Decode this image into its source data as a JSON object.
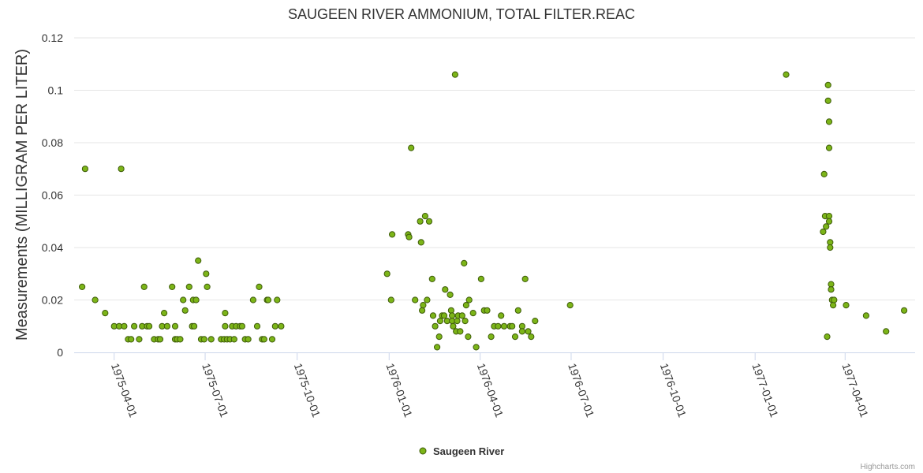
{
  "chart_data": {
    "type": "scatter",
    "title": "SAUGEEN RIVER AMMONIUM, TOTAL FILTER.REAC",
    "ylabel": "Measurements (MILLIGRAM PER LITER)",
    "xlabel": "",
    "xlim": [
      "1975-02-20",
      "1977-06-10"
    ],
    "ylim": [
      0,
      0.12
    ],
    "y_ticks": [
      0,
      0.02,
      0.04,
      0.06,
      0.08,
      0.1,
      0.12
    ],
    "y_tick_labels": [
      "0",
      "0.02",
      "0.04",
      "0.06",
      "0.08",
      "0.1",
      "0.12"
    ],
    "x_ticks": [
      "1975-04-01",
      "1975-07-01",
      "1975-10-01",
      "1976-01-01",
      "1976-04-01",
      "1976-07-01",
      "1976-10-01",
      "1977-01-01",
      "1977-04-01"
    ],
    "grid": true,
    "legend_position": "bottom-center",
    "series": [
      {
        "name": "Saugeen River",
        "color": "#7cb518",
        "points": [
          [
            "1975-02-28",
            0.025
          ],
          [
            "1975-03-03",
            0.07
          ],
          [
            "1975-03-13",
            0.02
          ],
          [
            "1975-03-23",
            0.015
          ],
          [
            "1975-04-01",
            0.01
          ],
          [
            "1975-04-06",
            0.01
          ],
          [
            "1975-04-08",
            0.07
          ],
          [
            "1975-04-11",
            0.01
          ],
          [
            "1975-04-15",
            0.005
          ],
          [
            "1975-04-18",
            0.005
          ],
          [
            "1975-04-21",
            0.01
          ],
          [
            "1975-04-26",
            0.005
          ],
          [
            "1975-04-29",
            0.01
          ],
          [
            "1975-05-01",
            0.025
          ],
          [
            "1975-05-04",
            0.01
          ],
          [
            "1975-05-06",
            0.01
          ],
          [
            "1975-05-11",
            0.005
          ],
          [
            "1975-05-15",
            0.005
          ],
          [
            "1975-05-17",
            0.005
          ],
          [
            "1975-05-19",
            0.01
          ],
          [
            "1975-05-21",
            0.015
          ],
          [
            "1975-05-24",
            0.01
          ],
          [
            "1975-05-29",
            0.025
          ],
          [
            "1975-06-01",
            0.01
          ],
          [
            "1975-06-01",
            0.005
          ],
          [
            "1975-06-03",
            0.005
          ],
          [
            "1975-06-06",
            0.005
          ],
          [
            "1975-06-09",
            0.02
          ],
          [
            "1975-06-11",
            0.016
          ],
          [
            "1975-06-15",
            0.025
          ],
          [
            "1975-06-18",
            0.01
          ],
          [
            "1975-06-19",
            0.02
          ],
          [
            "1975-06-20",
            0.01
          ],
          [
            "1975-06-22",
            0.02
          ],
          [
            "1975-06-24",
            0.035
          ],
          [
            "1975-06-27",
            0.005
          ],
          [
            "1975-06-30",
            0.005
          ],
          [
            "1975-07-02",
            0.03
          ],
          [
            "1975-07-03",
            0.025
          ],
          [
            "1975-07-07",
            0.005
          ],
          [
            "1975-07-17",
            0.005
          ],
          [
            "1975-07-20",
            0.005
          ],
          [
            "1975-07-21",
            0.015
          ],
          [
            "1975-07-21",
            0.01
          ],
          [
            "1975-07-23",
            0.005
          ],
          [
            "1975-07-26",
            0.005
          ],
          [
            "1975-07-28",
            0.01
          ],
          [
            "1975-07-30",
            0.005
          ],
          [
            "1975-08-01",
            0.01
          ],
          [
            "1975-08-05",
            0.01
          ],
          [
            "1975-08-07",
            0.01
          ],
          [
            "1975-08-10",
            0.005
          ],
          [
            "1975-08-13",
            0.005
          ],
          [
            "1975-08-18",
            0.02
          ],
          [
            "1975-08-22",
            0.01
          ],
          [
            "1975-08-24",
            0.025
          ],
          [
            "1975-08-27",
            0.005
          ],
          [
            "1975-08-29",
            0.005
          ],
          [
            "1975-09-01",
            0.02
          ],
          [
            "1975-09-02",
            0.02
          ],
          [
            "1975-09-06",
            0.005
          ],
          [
            "1975-09-09",
            0.01
          ],
          [
            "1975-09-11",
            0.02
          ],
          [
            "1975-09-15",
            0.01
          ],
          [
            "1975-12-30",
            0.03
          ],
          [
            "1976-01-03",
            0.02
          ],
          [
            "1976-01-04",
            0.045
          ],
          [
            "1976-01-20",
            0.045
          ],
          [
            "1976-01-21",
            0.044
          ],
          [
            "1976-01-23",
            0.078
          ],
          [
            "1976-01-27",
            0.02
          ],
          [
            "1976-02-01",
            0.05
          ],
          [
            "1976-02-02",
            0.042
          ],
          [
            "1976-02-03",
            0.016
          ],
          [
            "1976-02-04",
            0.018
          ],
          [
            "1976-02-06",
            0.052
          ],
          [
            "1976-02-08",
            0.02
          ],
          [
            "1976-02-10",
            0.05
          ],
          [
            "1976-02-13",
            0.028
          ],
          [
            "1976-02-14",
            0.014
          ],
          [
            "1976-02-16",
            0.01
          ],
          [
            "1976-02-18",
            0.002
          ],
          [
            "1976-02-20",
            0.006
          ],
          [
            "1976-02-21",
            0.012
          ],
          [
            "1976-02-23",
            0.014
          ],
          [
            "1976-02-25",
            0.014
          ],
          [
            "1976-02-26",
            0.024
          ],
          [
            "1976-02-28",
            0.012
          ],
          [
            "1976-03-02",
            0.022
          ],
          [
            "1976-03-03",
            0.016
          ],
          [
            "1976-03-04",
            0.014
          ],
          [
            "1976-03-04",
            0.012
          ],
          [
            "1976-03-05",
            0.01
          ],
          [
            "1976-03-07",
            0.106
          ],
          [
            "1976-03-08",
            0.008
          ],
          [
            "1976-03-09",
            0.012
          ],
          [
            "1976-03-10",
            0.014
          ],
          [
            "1976-03-12",
            0.008
          ],
          [
            "1976-03-14",
            0.014
          ],
          [
            "1976-03-16",
            0.034
          ],
          [
            "1976-03-17",
            0.012
          ],
          [
            "1976-03-18",
            0.018
          ],
          [
            "1976-03-20",
            0.006
          ],
          [
            "1976-03-21",
            0.02
          ],
          [
            "1976-03-25",
            0.015
          ],
          [
            "1976-03-28",
            0.002
          ],
          [
            "1976-04-02",
            0.028
          ],
          [
            "1976-04-05",
            0.016
          ],
          [
            "1976-04-08",
            0.016
          ],
          [
            "1976-04-12",
            0.006
          ],
          [
            "1976-04-15",
            0.01
          ],
          [
            "1976-04-19",
            0.01
          ],
          [
            "1976-04-22",
            0.014
          ],
          [
            "1976-04-25",
            0.01
          ],
          [
            "1976-05-01",
            0.01
          ],
          [
            "1976-05-03",
            0.01
          ],
          [
            "1976-05-06",
            0.006
          ],
          [
            "1976-05-09",
            0.016
          ],
          [
            "1976-05-13",
            0.01
          ],
          [
            "1976-05-13",
            0.008
          ],
          [
            "1976-05-16",
            0.028
          ],
          [
            "1976-05-19",
            0.008
          ],
          [
            "1976-05-22",
            0.006
          ],
          [
            "1976-05-26",
            0.012
          ],
          [
            "1976-06-30",
            0.018
          ],
          [
            "1977-02-01",
            0.106
          ],
          [
            "1977-03-10",
            0.046
          ],
          [
            "1977-03-11",
            0.068
          ],
          [
            "1977-03-12",
            0.052
          ],
          [
            "1977-03-13",
            0.048
          ],
          [
            "1977-03-14",
            0.006
          ],
          [
            "1977-03-15",
            0.102
          ],
          [
            "1977-03-15",
            0.096
          ],
          [
            "1977-03-16",
            0.088
          ],
          [
            "1977-03-16",
            0.078
          ],
          [
            "1977-03-16",
            0.052
          ],
          [
            "1977-03-16",
            0.05
          ],
          [
            "1977-03-17",
            0.042
          ],
          [
            "1977-03-17",
            0.04
          ],
          [
            "1977-03-18",
            0.026
          ],
          [
            "1977-03-18",
            0.024
          ],
          [
            "1977-03-19",
            0.02
          ],
          [
            "1977-03-20",
            0.018
          ],
          [
            "1977-03-21",
            0.02
          ],
          [
            "1977-04-02",
            0.018
          ],
          [
            "1977-04-22",
            0.014
          ],
          [
            "1977-05-12",
            0.008
          ],
          [
            "1977-05-30",
            0.016
          ]
        ]
      }
    ]
  },
  "credits": "Highcharts.com"
}
